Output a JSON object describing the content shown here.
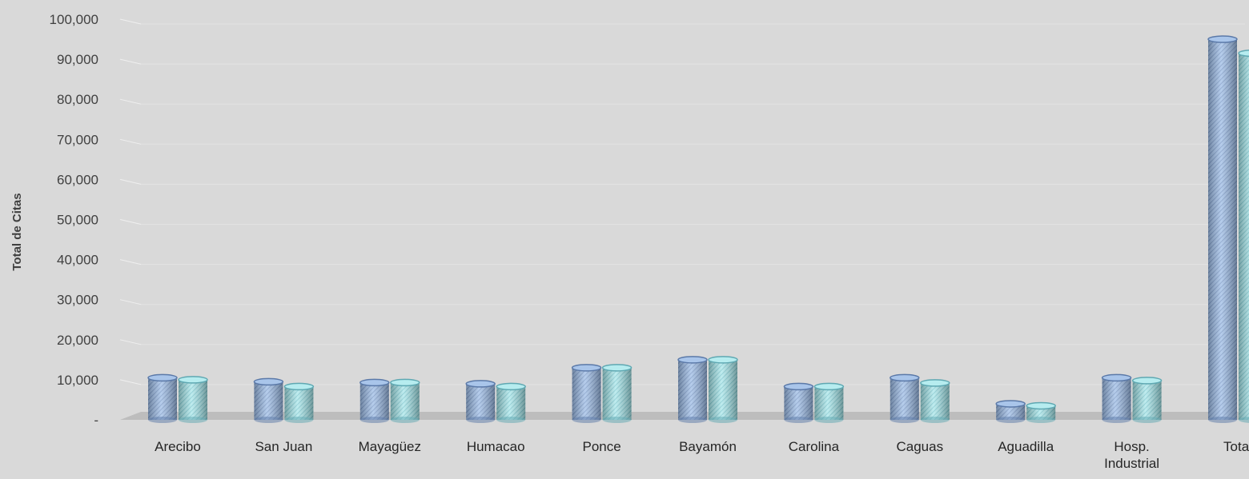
{
  "chart_data": {
    "type": "bar",
    "title": "",
    "xlabel": "",
    "ylabel": "Total de Citas",
    "ylim": [
      0,
      100000
    ],
    "y_ticks": [
      "-",
      "10,000",
      "20,000",
      "30,000",
      "40,000",
      "50,000",
      "60,000",
      "70,000",
      "80,000",
      "90,000",
      "100,000"
    ],
    "grid": true,
    "legend": "none",
    "categories": [
      [
        "Arecibo"
      ],
      [
        "San Juan"
      ],
      [
        "Mayagüez"
      ],
      [
        "Humacao"
      ],
      [
        "Ponce"
      ],
      [
        "Bayamón"
      ],
      [
        "Carolina"
      ],
      [
        "Caguas"
      ],
      [
        "Aguadilla"
      ],
      [
        "Hosp.",
        "Industrial"
      ],
      [
        "Total"
      ]
    ],
    "series": [
      {
        "color": "#8fb4e3",
        "values": [
          10500,
          9500,
          9300,
          9000,
          13000,
          15000,
          8300,
          10500,
          4000,
          10500,
          95000
        ]
      },
      {
        "color": "#8fdfe6",
        "values": [
          10000,
          8300,
          9300,
          8300,
          13000,
          15000,
          8300,
          9200,
          3500,
          9800,
          91500
        ]
      }
    ]
  }
}
